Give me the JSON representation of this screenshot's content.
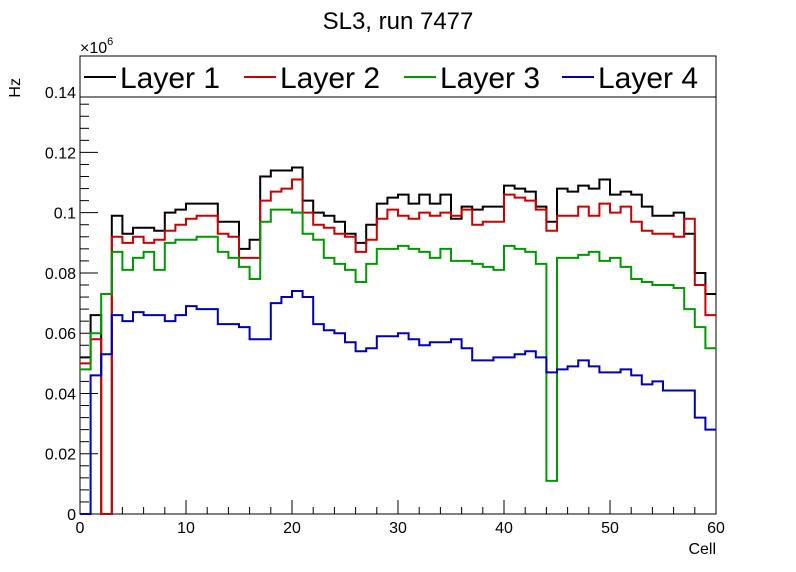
{
  "chart_data": {
    "type": "line",
    "style": "step-histogram",
    "title": "SL3, run 7477",
    "xlabel": "Cell",
    "ylabel": "Hz",
    "y_exponent_prefix": "×10",
    "y_exponent_power": "6",
    "xlim": [
      0,
      60
    ],
    "ylim": [
      0,
      0.152
    ],
    "x_ticks": [
      0,
      10,
      20,
      30,
      40,
      50,
      60
    ],
    "x_tick_labels": [
      "0",
      "10",
      "20",
      "30",
      "40",
      "50",
      "60"
    ],
    "y_ticks": [
      0,
      0.02,
      0.04,
      0.06,
      0.08,
      0.1,
      0.12,
      0.14
    ],
    "y_tick_labels": [
      "0",
      "0.02",
      "0.04",
      "0.06",
      "0.08",
      "0.1",
      "0.12",
      "0.14"
    ],
    "grid": false,
    "legend_position": "top",
    "bins": {
      "start": 0,
      "width": 1,
      "count": 60
    },
    "series": [
      {
        "name": "Layer 1",
        "color": "#000000",
        "values": [
          0.052,
          0.066,
          0,
          0.099,
          0.093,
          0.095,
          0.095,
          0.094,
          0.1,
          0.101,
          0.103,
          0.103,
          0.103,
          0.097,
          0.097,
          0.088,
          0.091,
          0.112,
          0.114,
          0.114,
          0.115,
          0.104,
          0.1,
          0.099,
          0.097,
          0.093,
          0.09,
          0.096,
          0.103,
          0.105,
          0.106,
          0.103,
          0.106,
          0.103,
          0.106,
          0.098,
          0.102,
          0.101,
          0.102,
          0.102,
          0.109,
          0.108,
          0.107,
          0.102,
          0.097,
          0.108,
          0.107,
          0.109,
          0.108,
          0.111,
          0.106,
          0.107,
          0.106,
          0.102,
          0.099,
          0.099,
          0.1,
          0.093,
          0.08,
          0.073
        ]
      },
      {
        "name": "Layer 2",
        "color": "#cc0000",
        "values": [
          0.05,
          0.058,
          0,
          0.092,
          0.09,
          0.092,
          0.09,
          0.091,
          0.094,
          0.096,
          0.098,
          0.099,
          0.099,
          0.093,
          0.092,
          0.085,
          0.085,
          0.104,
          0.107,
          0.108,
          0.111,
          0.1,
          0.096,
          0.095,
          0.093,
          0.092,
          0.087,
          0.091,
          0.098,
          0.101,
          0.099,
          0.098,
          0.1,
          0.099,
          0.1,
          0.099,
          0.101,
          0.096,
          0.097,
          0.097,
          0.106,
          0.105,
          0.104,
          0.101,
          0.094,
          0.099,
          0.099,
          0.102,
          0.099,
          0.103,
          0.1,
          0.102,
          0.097,
          0.094,
          0.093,
          0.093,
          0.092,
          0.098,
          0.076,
          0.066
        ]
      },
      {
        "name": "Layer 3",
        "color": "#009900",
        "values": [
          0.048,
          0.06,
          0.073,
          0.087,
          0.081,
          0.085,
          0.087,
          0.081,
          0.09,
          0.091,
          0.091,
          0.092,
          0.092,
          0.087,
          0.085,
          0.082,
          0.078,
          0.097,
          0.101,
          0.101,
          0.1,
          0.093,
          0.091,
          0.085,
          0.083,
          0.081,
          0.077,
          0.083,
          0.088,
          0.088,
          0.089,
          0.088,
          0.087,
          0.085,
          0.088,
          0.084,
          0.084,
          0.083,
          0.082,
          0.081,
          0.089,
          0.088,
          0.087,
          0.083,
          0.011,
          0.085,
          0.085,
          0.086,
          0.087,
          0.084,
          0.085,
          0.082,
          0.078,
          0.077,
          0.076,
          0.076,
          0.075,
          0.068,
          0.062,
          0.055
        ]
      },
      {
        "name": "Layer 4",
        "color": "#0000bb",
        "values": [
          0,
          0.046,
          0.053,
          0.066,
          0.064,
          0.067,
          0.066,
          0.066,
          0.064,
          0.066,
          0.069,
          0.068,
          0.068,
          0.063,
          0.063,
          0.062,
          0.058,
          0.058,
          0.07,
          0.072,
          0.074,
          0.072,
          0.063,
          0.061,
          0.06,
          0.057,
          0.054,
          0.055,
          0.059,
          0.059,
          0.06,
          0.058,
          0.056,
          0.057,
          0.057,
          0.058,
          0.055,
          0.051,
          0.051,
          0.052,
          0.052,
          0.053,
          0.054,
          0.052,
          0.047,
          0.048,
          0.049,
          0.051,
          0.049,
          0.047,
          0.047,
          0.048,
          0.046,
          0.043,
          0.044,
          0.041,
          0.041,
          0.041,
          0.032,
          0.028
        ]
      }
    ]
  }
}
